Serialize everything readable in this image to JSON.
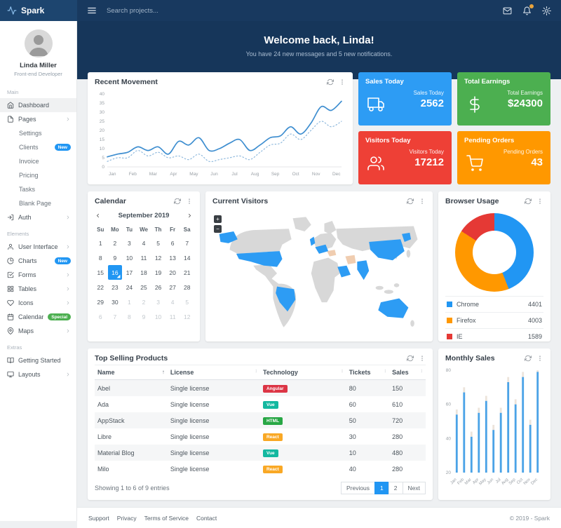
{
  "topbar": {
    "brand": "Spark",
    "search_placeholder": "Search projects..."
  },
  "banner": {
    "title": "Welcome back, Linda!",
    "subtitle": "You have 24 new messages and 5 new notifications."
  },
  "sidebar": {
    "user": {
      "name": "Linda Miller",
      "role": "Front-end Developer"
    },
    "sections": [
      {
        "label": "Main",
        "items": [
          {
            "label": "Dashboard",
            "icon": "home",
            "active": true
          },
          {
            "label": "Pages",
            "icon": "file",
            "chevron": true
          },
          {
            "label": "Settings",
            "sub": true
          },
          {
            "label": "Clients",
            "sub": true,
            "badge": {
              "text": "New",
              "color": "#2196f3"
            }
          },
          {
            "label": "Invoice",
            "sub": true
          },
          {
            "label": "Pricing",
            "sub": true
          },
          {
            "label": "Tasks",
            "sub": true
          },
          {
            "label": "Blank Page",
            "sub": true
          },
          {
            "label": "Auth",
            "icon": "log-in",
            "chevron": true
          }
        ]
      },
      {
        "label": "Elements",
        "items": [
          {
            "label": "User Interface",
            "icon": "user",
            "chevron": true
          },
          {
            "label": "Charts",
            "icon": "pie-chart",
            "badge": {
              "text": "New",
              "color": "#2196f3"
            }
          },
          {
            "label": "Forms",
            "icon": "check-square",
            "chevron": true
          },
          {
            "label": "Tables",
            "icon": "grid",
            "chevron": true
          },
          {
            "label": "Icons",
            "icon": "heart",
            "chevron": true
          },
          {
            "label": "Calendar",
            "icon": "calendar",
            "badge": {
              "text": "Special",
              "color": "#4caf50"
            }
          },
          {
            "label": "Maps",
            "icon": "map-pin",
            "chevron": true
          }
        ]
      },
      {
        "label": "Extras",
        "items": [
          {
            "label": "Getting Started",
            "icon": "book-open"
          },
          {
            "label": "Layouts",
            "icon": "monitor",
            "chevron": true
          }
        ]
      }
    ]
  },
  "stats": [
    {
      "title": "Sales Today",
      "label": "Sales Today",
      "value": "2562",
      "color": "#2d9cf4",
      "icon": "truck"
    },
    {
      "title": "Total Earnings",
      "label": "Total Earnings",
      "value": "$24300",
      "color": "#4caf50",
      "icon": "dollar-sign"
    },
    {
      "title": "Visitors Today",
      "label": "Visitors Today",
      "value": "17212",
      "color": "#ee4036",
      "icon": "users"
    },
    {
      "title": "Pending Orders",
      "label": "Pending Orders",
      "value": "43",
      "color": "#ff9800",
      "icon": "shopping-cart"
    }
  ],
  "panels": {
    "recent_movement": "Recent Movement",
    "calendar": "Calendar",
    "current_visitors": "Current Visitors",
    "browser_usage": "Browser Usage",
    "top_selling": "Top Selling Products",
    "monthly_sales": "Monthly Sales"
  },
  "calendar": {
    "month": "September 2019",
    "day_names": [
      "Su",
      "Mo",
      "Tu",
      "We",
      "Th",
      "Fr",
      "Sa"
    ],
    "weeks": [
      [
        {
          "d": 1
        },
        {
          "d": 2
        },
        {
          "d": 3
        },
        {
          "d": 4
        },
        {
          "d": 5
        },
        {
          "d": 6
        },
        {
          "d": 7
        }
      ],
      [
        {
          "d": 8
        },
        {
          "d": 9
        },
        {
          "d": 10
        },
        {
          "d": 11
        },
        {
          "d": 12
        },
        {
          "d": 13
        },
        {
          "d": 14
        }
      ],
      [
        {
          "d": 15
        },
        {
          "d": 16,
          "selected": true
        },
        {
          "d": 17
        },
        {
          "d": 18
        },
        {
          "d": 19
        },
        {
          "d": 20
        },
        {
          "d": 21
        }
      ],
      [
        {
          "d": 22
        },
        {
          "d": 23
        },
        {
          "d": 24
        },
        {
          "d": 25
        },
        {
          "d": 26
        },
        {
          "d": 27
        },
        {
          "d": 28
        }
      ],
      [
        {
          "d": 29
        },
        {
          "d": 30
        },
        {
          "d": 1,
          "muted": true
        },
        {
          "d": 2,
          "muted": true
        },
        {
          "d": 3,
          "muted": true
        },
        {
          "d": 4,
          "muted": true
        },
        {
          "d": 5,
          "muted": true
        }
      ],
      [
        {
          "d": 6,
          "muted": true
        },
        {
          "d": 7,
          "muted": true
        },
        {
          "d": 8,
          "muted": true
        },
        {
          "d": 9,
          "muted": true
        },
        {
          "d": 10,
          "muted": true
        },
        {
          "d": 11,
          "muted": true
        },
        {
          "d": 12,
          "muted": true
        }
      ]
    ]
  },
  "map": {
    "zoom_in": "+",
    "zoom_out": "−"
  },
  "products": {
    "columns": [
      "Name",
      "License",
      "Technology",
      "Tickets",
      "Sales"
    ],
    "col_widths": [
      "22%",
      "28%",
      "26%",
      "13%",
      "11%"
    ],
    "rows": [
      {
        "name": "Abel",
        "license": "Single license",
        "tech": "Angular",
        "tickets": "80",
        "sales": "150"
      },
      {
        "name": "Ada",
        "license": "Single license",
        "tech": "Vue",
        "tickets": "60",
        "sales": "610"
      },
      {
        "name": "AppStack",
        "license": "Single license",
        "tech": "HTML",
        "tickets": "50",
        "sales": "720"
      },
      {
        "name": "Libre",
        "license": "Single license",
        "tech": "React",
        "tickets": "30",
        "sales": "280"
      },
      {
        "name": "Material Blog",
        "license": "Single license",
        "tech": "Vue",
        "tickets": "10",
        "sales": "480"
      },
      {
        "name": "Milo",
        "license": "Single license",
        "tech": "React",
        "tickets": "40",
        "sales": "280"
      }
    ],
    "tech_colors": {
      "Angular": "#dc3545",
      "Vue": "#14b8a0",
      "HTML": "#28a745",
      "React": "#f9a825"
    },
    "summary": "Showing 1 to 6 of 9 entries",
    "pagination": [
      {
        "label": "Previous"
      },
      {
        "label": "1",
        "active": true
      },
      {
        "label": "2"
      },
      {
        "label": "Next"
      }
    ]
  },
  "footer": {
    "links": [
      "Support",
      "Privacy",
      "Terms of Service",
      "Contact"
    ],
    "copyright": "© 2019 - Spark"
  },
  "chart_data": [
    {
      "id": "recent-movement",
      "type": "line",
      "title": "Recent Movement",
      "x_labels": [
        "Jan",
        "Feb",
        "Mar",
        "Apr",
        "May",
        "Jun",
        "Jul",
        "Aug",
        "Sep",
        "Oct",
        "Nov",
        "Dec"
      ],
      "ylim": [
        0,
        40
      ],
      "yticks": [
        0,
        5,
        10,
        15,
        20,
        25,
        30,
        35,
        40
      ],
      "grid": false,
      "series": [
        {
          "name": "current",
          "style": "solid",
          "color": "#3e8ed0",
          "values": [
            5.5,
            7,
            8,
            11,
            9,
            11,
            7,
            14,
            12,
            16,
            9,
            10,
            13,
            15,
            9,
            12,
            16,
            17,
            22,
            18,
            24,
            33,
            31,
            36
          ]
        },
        {
          "name": "previous",
          "style": "dotted",
          "color": "#8fb9dd",
          "values": [
            3,
            5,
            5,
            9,
            6,
            8,
            5,
            6,
            4,
            7,
            3,
            4,
            5,
            6,
            4,
            8,
            12,
            13,
            18,
            15,
            20,
            25,
            22,
            25
          ]
        }
      ]
    },
    {
      "id": "browser-usage",
      "type": "pie",
      "title": "Browser Usage",
      "labels": [
        "Chrome",
        "Firefox",
        "IE"
      ],
      "values": [
        4401,
        4003,
        1589
      ],
      "colors": [
        "#2196f3",
        "#ff9800",
        "#e53935"
      ],
      "legend_position": "bottom"
    },
    {
      "id": "monthly-sales",
      "type": "bar",
      "title": "Monthly Sales",
      "categories": [
        "Jan",
        "Feb",
        "Mar",
        "Apr",
        "May",
        "Jun",
        "Jul",
        "Aug",
        "Sep",
        "Oct",
        "Nov",
        "Dec"
      ],
      "values": [
        54,
        67,
        41,
        55,
        62,
        45,
        55,
        73,
        60,
        76,
        48,
        79
      ],
      "ylim": [
        20,
        80
      ],
      "yticks": [
        20,
        40,
        60,
        80
      ],
      "color": "#4aa3e8"
    }
  ]
}
